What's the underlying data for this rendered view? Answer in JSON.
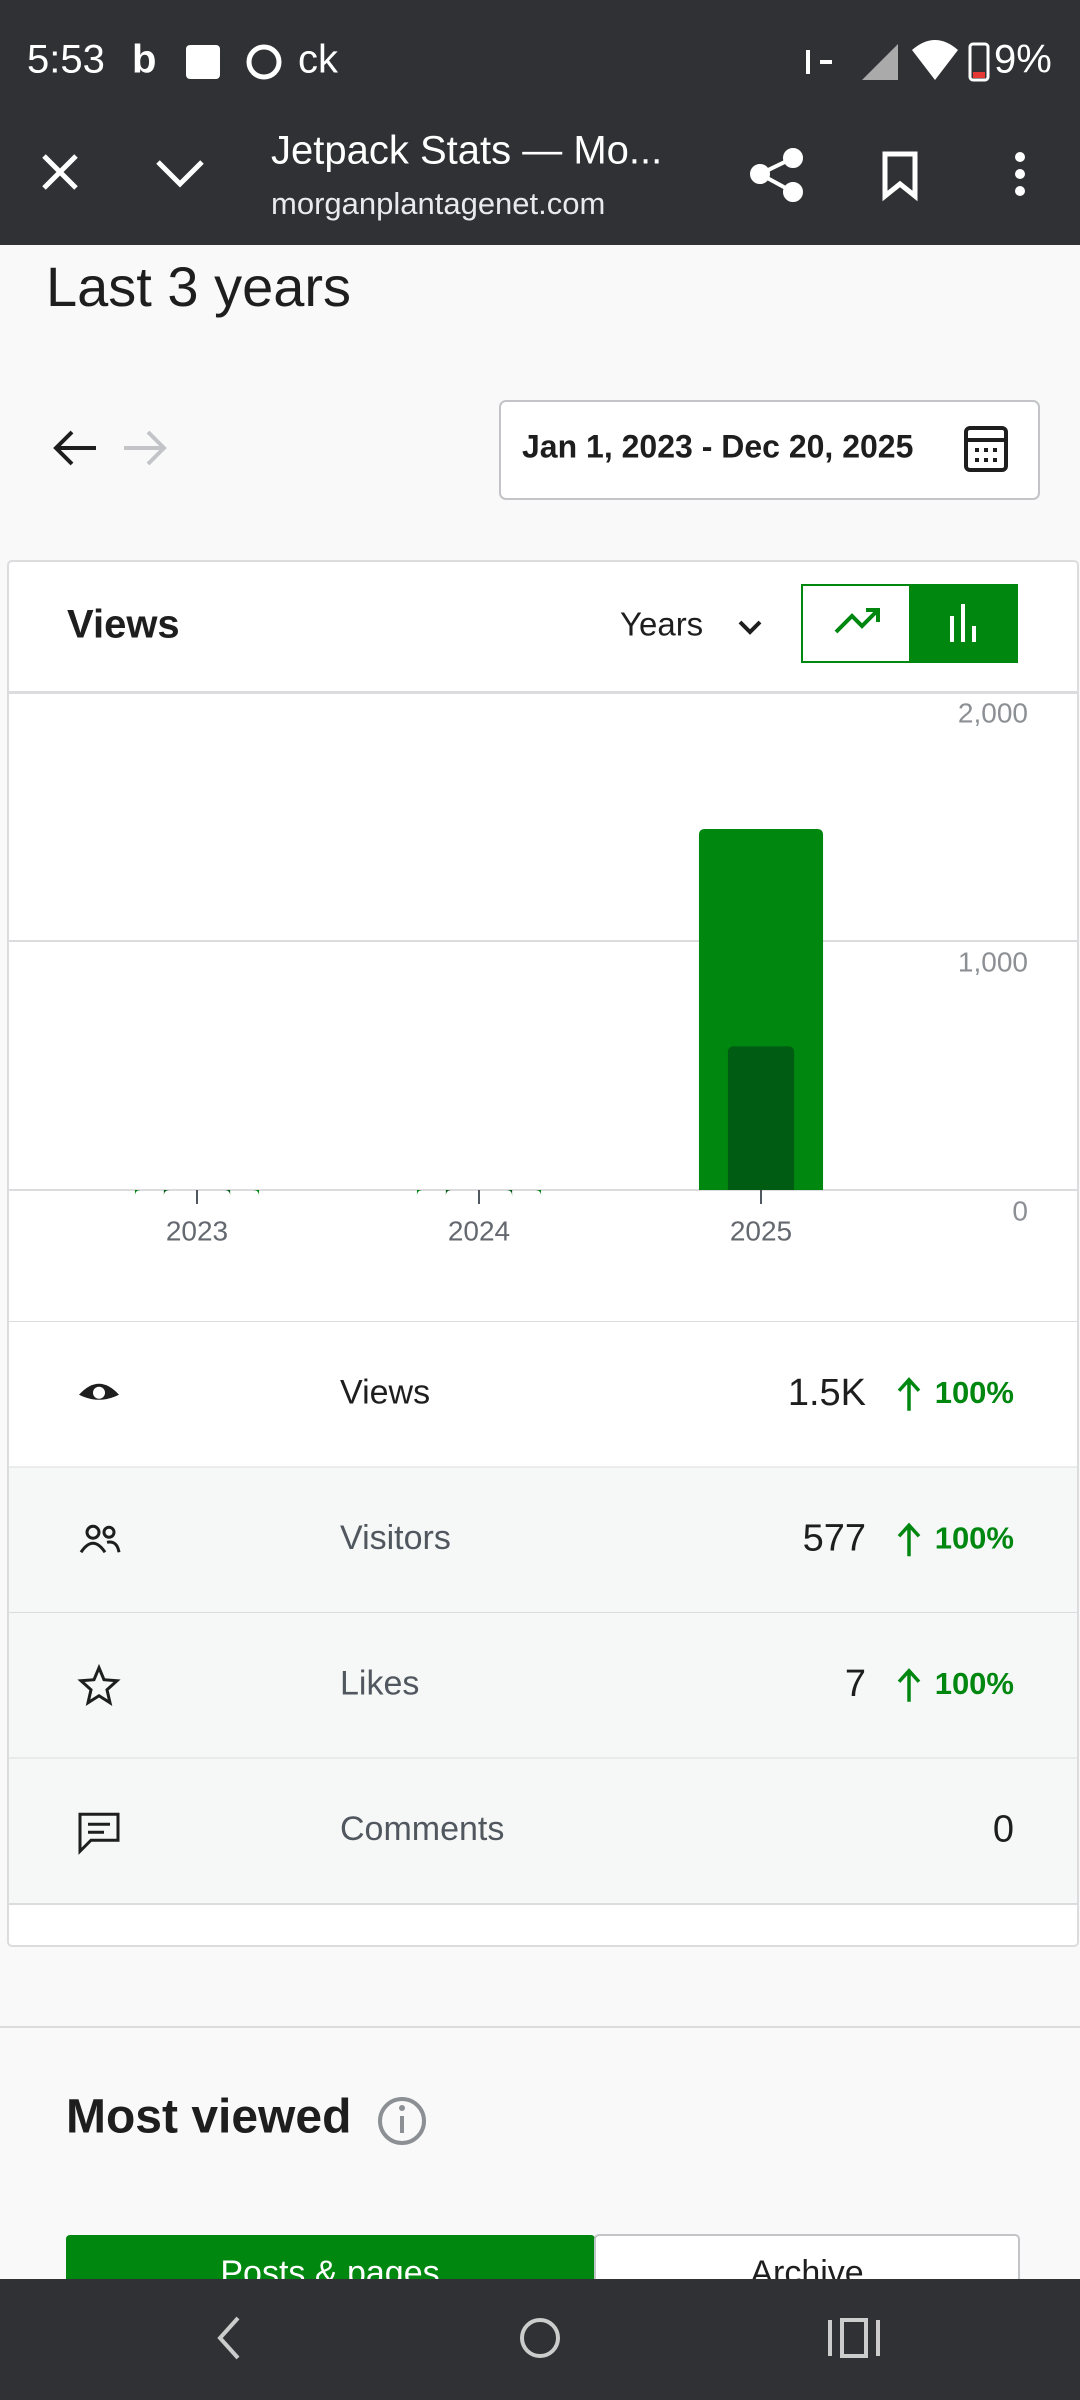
{
  "status_bar": {
    "time": "5:53",
    "app_text": "ck",
    "battery": "9%"
  },
  "browser": {
    "title": "Jetpack Stats — Mo...",
    "url": "morganplantagenet.com"
  },
  "period_title": "Last 3 years",
  "date_range": "Jan 1, 2023 - Dec 20, 2025",
  "card": {
    "title": "Views",
    "interval": "Years"
  },
  "chart_data": {
    "type": "bar",
    "categories": [
      "2023",
      "2024",
      "2025"
    ],
    "series": [
      {
        "name": "Views",
        "color": "#008710",
        "values": [
          0,
          0,
          1450
        ]
      },
      {
        "name": "Visitors",
        "color": "#005c12",
        "values": [
          0,
          0,
          577
        ]
      }
    ],
    "ylim": [
      0,
      2000
    ],
    "yticks": [
      0,
      {
        "value": 1000,
        "label": "1,000"
      },
      {
        "value": 2000,
        "label": "2,000"
      }
    ],
    "grid": true
  },
  "stats": [
    {
      "label": "Views",
      "value": "1.5K",
      "change": "100%"
    },
    {
      "label": "Visitors",
      "value": "577",
      "change": "100%"
    },
    {
      "label": "Likes",
      "value": "7",
      "change": "100%"
    },
    {
      "label": "Comments",
      "value": "0"
    }
  ],
  "most_viewed": {
    "title": "Most viewed",
    "tabs": [
      "Posts & pages",
      "Archive"
    ]
  }
}
